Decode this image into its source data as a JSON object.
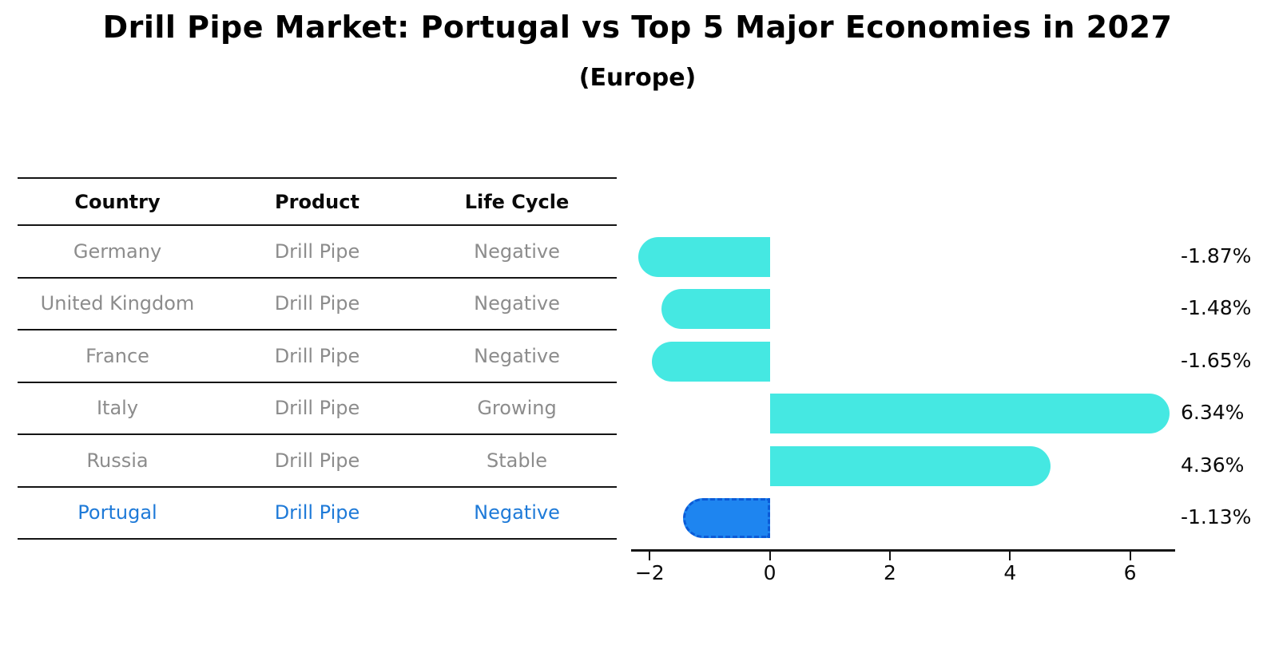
{
  "title": "Drill Pipe Market: Portugal vs Top 5 Major Economies in 2027",
  "subtitle": "(Europe)",
  "colors": {
    "bar": "#45e8e2",
    "highlight_bar": "#1e85f0",
    "highlight_bar_border": "#0b5bd7",
    "highlight_text": "#1e7ad8",
    "table_text": "#8c8c8c",
    "axis": "#151515",
    "background": "#ffffff"
  },
  "table": {
    "columns": [
      "Country",
      "Product",
      "Life Cycle"
    ],
    "rows": [
      {
        "country": "Germany",
        "product": "Drill Pipe",
        "life_cycle": "Negative",
        "highlight": false
      },
      {
        "country": "United Kingdom",
        "product": "Drill Pipe",
        "life_cycle": "Negative",
        "highlight": false
      },
      {
        "country": "France",
        "product": "Drill Pipe",
        "life_cycle": "Negative",
        "highlight": false
      },
      {
        "country": "Italy",
        "product": "Drill Pipe",
        "life_cycle": "Growing",
        "highlight": false
      },
      {
        "country": "Russia",
        "product": "Drill Pipe",
        "life_cycle": "Stable",
        "highlight": false
      },
      {
        "country": "Portugal",
        "product": "Drill Pipe",
        "life_cycle": "Negative",
        "highlight": true
      }
    ]
  },
  "chart_data": {
    "type": "bar",
    "orientation": "horizontal",
    "title": "Drill Pipe Market: Portugal vs Top 5 Major Economies in 2027",
    "subtitle": "(Europe)",
    "categories": [
      "Germany",
      "United Kingdom",
      "France",
      "Italy",
      "Russia",
      "Portugal"
    ],
    "values": [
      -1.87,
      -1.48,
      -1.65,
      6.34,
      4.36,
      -1.13
    ],
    "value_labels": [
      "-1.87%",
      "-1.48%",
      "-1.65%",
      "6.34%",
      "4.36%",
      "-1.13%"
    ],
    "highlight_category": "Portugal",
    "xlabel": "",
    "ylabel": "",
    "xlim": [
      -2.31,
      6.75
    ],
    "xticks": [
      {
        "value": -2,
        "label": "−2"
      },
      {
        "value": 0,
        "label": "0"
      },
      {
        "value": 2,
        "label": "2"
      },
      {
        "value": 4,
        "label": "4"
      },
      {
        "value": 6,
        "label": "6"
      }
    ],
    "grid": false,
    "legend": false
  }
}
